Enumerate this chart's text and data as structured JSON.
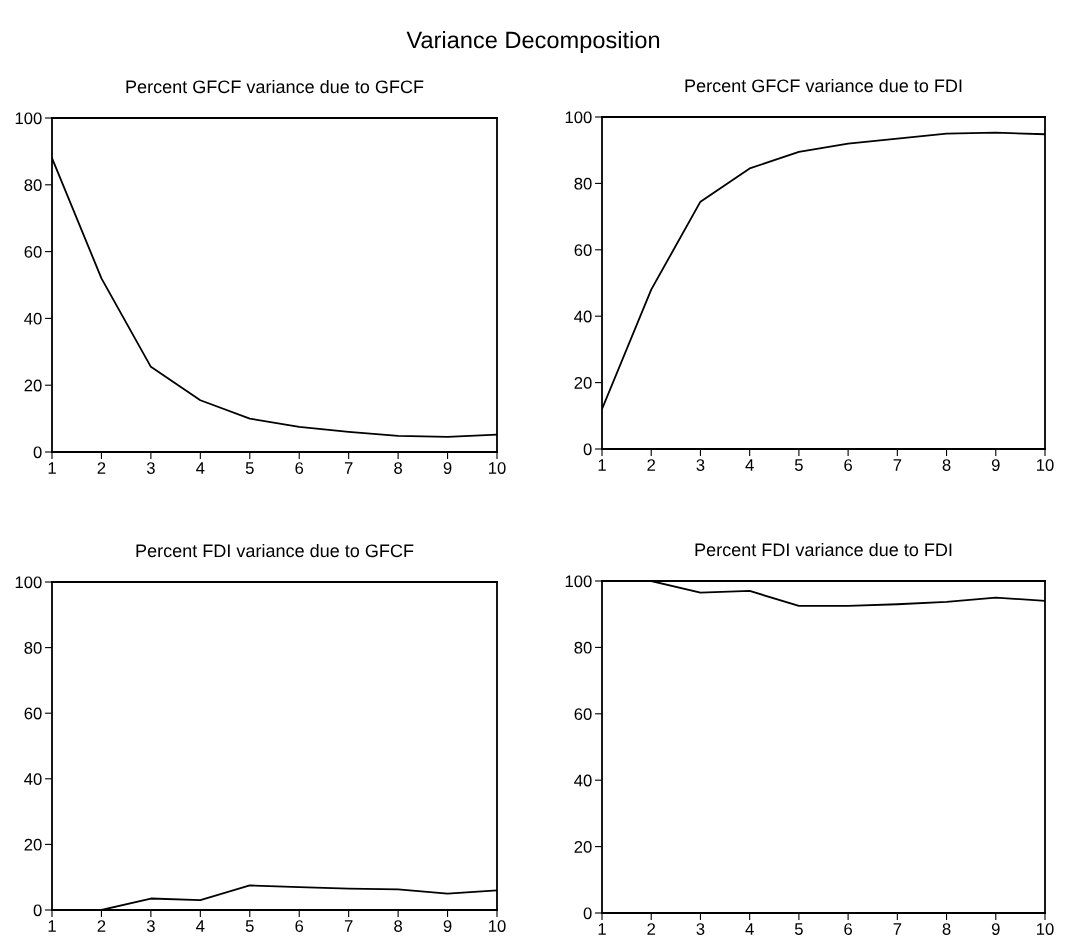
{
  "chart_data": [
    {
      "type": "line",
      "title": "Percent GFCF variance due to GFCF",
      "annotations": [
        "Variance Decomposition"
      ],
      "x": [
        1,
        2,
        3,
        4,
        5,
        6,
        7,
        8,
        9,
        10
      ],
      "series": [
        {
          "color": "#000000",
          "values": [
            88,
            52,
            25.5,
            15.5,
            10,
            7.5,
            6,
            4.8,
            4.5,
            5.2
          ]
        }
      ],
      "xlim": [
        1,
        10
      ],
      "xticks": [
        1,
        2,
        3,
        4,
        5,
        6,
        7,
        8,
        9,
        10
      ],
      "ylim": [
        0,
        100
      ],
      "yticks": [
        0,
        20,
        40,
        60,
        80,
        100
      ],
      "marker": "none",
      "line_style": "solid"
    },
    {
      "type": "line",
      "title": "Percent GFCF variance due to FDI",
      "x": [
        1,
        2,
        3,
        4,
        5,
        6,
        7,
        8,
        9,
        10
      ],
      "series": [
        {
          "color": "#000000",
          "values": [
            12,
            48,
            74.5,
            84.5,
            89.5,
            92,
            93.5,
            95,
            95.3,
            94.8
          ]
        }
      ],
      "xlim": [
        1,
        10
      ],
      "xticks": [
        1,
        2,
        3,
        4,
        5,
        6,
        7,
        8,
        9,
        10
      ],
      "ylim": [
        0,
        100
      ],
      "yticks": [
        0,
        20,
        40,
        60,
        80,
        100
      ],
      "marker": "none",
      "line_style": "solid"
    },
    {
      "type": "line",
      "title": "Percent FDI variance due to GFCF",
      "x": [
        1,
        2,
        3,
        4,
        5,
        6,
        7,
        8,
        9,
        10
      ],
      "series": [
        {
          "color": "#000000",
          "values": [
            0,
            0,
            3.5,
            3,
            7.5,
            7,
            6.5,
            6.3,
            5,
            6
          ]
        }
      ],
      "xlim": [
        1,
        10
      ],
      "xticks": [
        1,
        2,
        3,
        4,
        5,
        6,
        7,
        8,
        9,
        10
      ],
      "ylim": [
        0,
        100
      ],
      "yticks": [
        0,
        20,
        40,
        60,
        80,
        100
      ],
      "marker": "none",
      "line_style": "solid"
    },
    {
      "type": "line",
      "title": "Percent FDI variance due to FDI",
      "x": [
        1,
        2,
        3,
        4,
        5,
        6,
        7,
        8,
        9,
        10
      ],
      "series": [
        {
          "color": "#000000",
          "values": [
            100,
            100,
            96.5,
            97,
            92.5,
            92.5,
            93,
            93.7,
            95,
            94
          ]
        }
      ],
      "xlim": [
        1,
        10
      ],
      "xticks": [
        1,
        2,
        3,
        4,
        5,
        6,
        7,
        8,
        9,
        10
      ],
      "ylim": [
        0,
        100
      ],
      "yticks": [
        0,
        20,
        40,
        60,
        80,
        100
      ],
      "marker": "none",
      "line_style": "solid"
    }
  ]
}
